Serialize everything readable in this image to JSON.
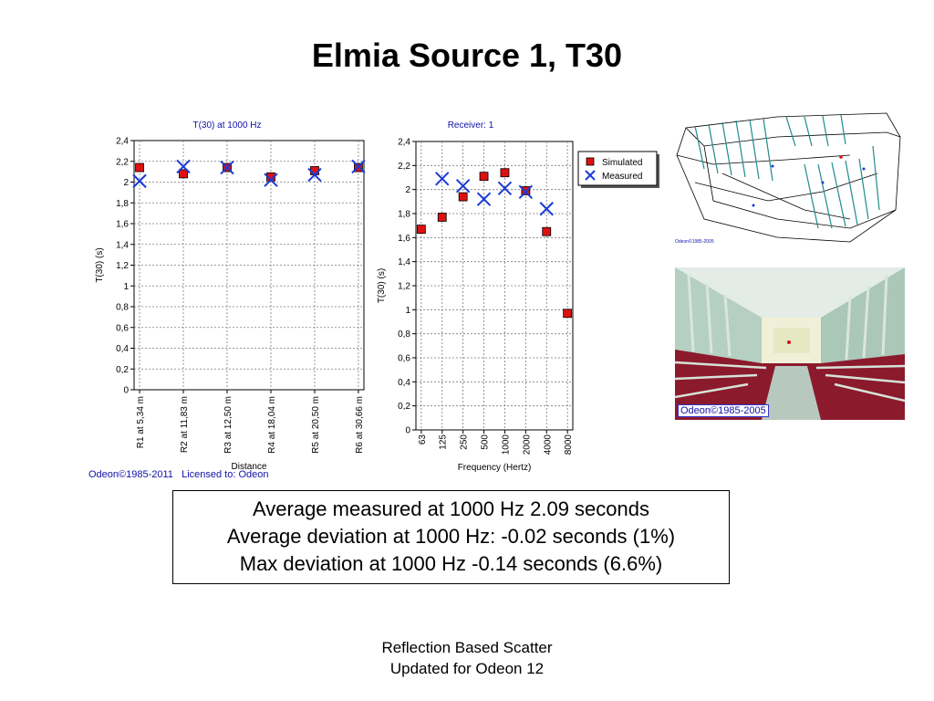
{
  "slide": {
    "title": "Elmia Source 1, T30",
    "credits": "Odeon©1985-2011   Licensed to: Odeon",
    "summary": [
      "Average measured at 1000 Hz 2.09 seconds",
      "Average deviation at 1000 Hz: -0.02 seconds (1%)",
      "Max deviation  at 1000 Hz -0.14 seconds (6.6%)"
    ],
    "footer": [
      "Reflection Based Scatter",
      "Updated for Odeon 12"
    ],
    "model_copyright": "Odeon©1985-2005",
    "render_copyright": "Odeon©1985-2005"
  },
  "colors": {
    "simulated": "#dd1111",
    "measured": "#1a3ad6",
    "chart_title": "#1111aa",
    "grid": "#7a7a7a",
    "seats": "#8b1a2c",
    "walls": "#b9d4c6",
    "model_lines": "#1f8c8c"
  },
  "chart_data": [
    {
      "type": "scatter",
      "title": "T(30) at 1000 Hz",
      "xlabel": "Distance",
      "ylabel": "T(30) (s)",
      "categories": [
        "R1 at 5,34 m",
        "R2 at 11,83 m",
        "R3 at 12,50 m",
        "R4 at 18,04 m",
        "R5 at 20,50 m",
        "R6 at 30,66 m"
      ],
      "ylim": [
        0,
        2.4
      ],
      "yticks": [
        "0",
        "0,2",
        "0,4",
        "0,6",
        "0,8",
        "1",
        "1,2",
        "1,4",
        "1,6",
        "1,8",
        "2",
        "2,2",
        "2,4"
      ],
      "grid": true,
      "series": [
        {
          "name": "Simulated",
          "marker": "square",
          "values": [
            2.14,
            2.08,
            2.14,
            2.05,
            2.11,
            2.14
          ]
        },
        {
          "name": "Measured",
          "marker": "x",
          "values": [
            2.01,
            2.15,
            2.14,
            2.02,
            2.07,
            2.15
          ]
        }
      ]
    },
    {
      "type": "scatter",
      "title": "Receiver: 1",
      "xlabel": "Frequency (Hertz)",
      "ylabel": "T(30) (s)",
      "categories": [
        "63",
        "125",
        "250",
        "500",
        "1000",
        "2000",
        "4000",
        "8000"
      ],
      "ylim": [
        0,
        2.4
      ],
      "yticks": [
        "0",
        "0,2",
        "0,4",
        "0,6",
        "0,8",
        "1",
        "1,2",
        "1,4",
        "1,6",
        "1,8",
        "2",
        "2,2",
        "2,4"
      ],
      "grid": true,
      "legend": "right",
      "series": [
        {
          "name": "Simulated",
          "marker": "square",
          "values": [
            1.67,
            1.77,
            1.94,
            2.11,
            2.14,
            1.99,
            1.65,
            0.97
          ]
        },
        {
          "name": "Measured",
          "marker": "x",
          "values": [
            null,
            2.09,
            2.03,
            1.92,
            2.01,
            1.98,
            1.84,
            null
          ]
        }
      ]
    }
  ]
}
